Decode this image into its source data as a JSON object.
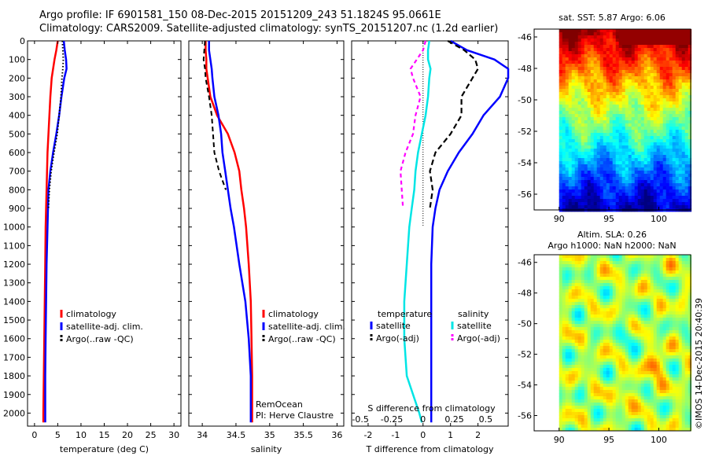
{
  "header": {
    "line1": "Argo profile: IF 6901581_150 08-Dec-2015 20151209_243 51.1824S 95.0661E",
    "line2": "Climatology: CARS2009. Satellite-adjusted climatology: synTS_20151207.nc (1.2d earlier)"
  },
  "side_label": "©IMOS 14-Dec-2015 20:40:39",
  "colors": {
    "climatology": "#ff0000",
    "satellite": "#0000ff",
    "argo": "#000000",
    "s_satellite": "#00e5e5",
    "s_argo": "#ff00ff"
  },
  "chart_data": [
    {
      "type": "line",
      "id": "temperature",
      "xlabel": "temperature (deg C)",
      "xlim": [
        -1.5,
        31.5
      ],
      "xticks": [
        0,
        5,
        10,
        15,
        20,
        25,
        30
      ],
      "ylim": [
        2070,
        0
      ],
      "yticks": [
        0,
        100,
        200,
        300,
        400,
        500,
        600,
        700,
        800,
        900,
        1000,
        1100,
        1200,
        1300,
        1400,
        1500,
        1600,
        1700,
        1800,
        1900,
        2000
      ],
      "depth": [
        0,
        50,
        100,
        150,
        200,
        300,
        400,
        500,
        600,
        700,
        800,
        900,
        1000,
        1200,
        1400,
        1600,
        1800,
        2000,
        2050
      ],
      "series": [
        {
          "name": "climatology",
          "color": "#ff0000",
          "width": 2.5,
          "dash": "",
          "values": [
            5.0,
            4.7,
            4.3,
            4.0,
            3.7,
            3.4,
            3.2,
            3.0,
            2.8,
            2.7,
            2.6,
            2.5,
            2.4,
            2.3,
            2.2,
            2.1,
            2.0,
            1.9,
            1.9
          ]
        },
        {
          "name": "satellite-adj. clim.",
          "color": "#0000ff",
          "width": 2.5,
          "dash": "",
          "values": [
            6.3,
            6.5,
            6.8,
            6.9,
            6.4,
            5.8,
            5.3,
            4.7,
            4.0,
            3.4,
            3.0,
            2.9,
            2.8,
            2.6,
            2.5,
            2.4,
            2.3,
            2.3,
            2.3
          ]
        },
        {
          "name": "Argo(..raw -QC)",
          "color": "#000000",
          "width": 2,
          "dash": "1.5,2.5",
          "values": [
            6.0,
            6.1,
            6.2,
            6.1,
            5.9,
            5.7,
            5.3,
            4.9,
            4.2,
            3.6,
            3.2,
            3.0,
            null,
            null,
            null,
            null,
            null,
            null,
            null
          ]
        }
      ],
      "legend": [
        "climatology",
        "satellite-adj. clim.",
        "Argo(..raw -QC)"
      ]
    },
    {
      "type": "line",
      "id": "salinity",
      "xlabel": "salinity",
      "xlim": [
        33.8,
        36.1
      ],
      "xticks": [
        34,
        34.5,
        35,
        35.5,
        36
      ],
      "ylim": [
        2070,
        0
      ],
      "depth": [
        0,
        50,
        100,
        150,
        200,
        300,
        400,
        500,
        600,
        700,
        800,
        900,
        1000,
        1200,
        1400,
        1600,
        1800,
        2000,
        2050
      ],
      "series": [
        {
          "name": "climatology",
          "color": "#ff0000",
          "width": 2.5,
          "dash": "",
          "values": [
            34.05,
            34.05,
            34.06,
            34.06,
            34.08,
            34.12,
            34.22,
            34.38,
            34.48,
            34.55,
            34.58,
            34.62,
            34.65,
            34.69,
            34.72,
            34.73,
            34.74,
            34.74,
            34.74
          ]
        },
        {
          "name": "satellite-adj. clim.",
          "color": "#0000ff",
          "width": 2.5,
          "dash": "",
          "values": [
            34.1,
            34.1,
            34.12,
            34.14,
            34.15,
            34.18,
            34.24,
            34.28,
            34.3,
            34.34,
            34.38,
            34.42,
            34.47,
            34.55,
            34.64,
            34.69,
            34.72,
            34.72,
            34.72
          ]
        },
        {
          "name": "Argo(..raw -QC)",
          "color": "#000000",
          "width": 2,
          "dash": "6,4",
          "values": [
            34.04,
            34.03,
            34.02,
            34.04,
            34.05,
            34.1,
            34.14,
            34.16,
            34.18,
            34.25,
            34.35,
            null,
            null,
            null,
            null,
            null,
            null,
            null,
            null
          ]
        }
      ],
      "legend": [
        "climatology",
        "satellite-adj. clim.",
        "Argo(..raw -QC)"
      ],
      "annotation": [
        "RemOcean",
        "PI: Herve Claustre"
      ]
    },
    {
      "type": "line",
      "id": "difference",
      "xlabel": "T difference from climatology",
      "xlim": [
        -2.6,
        3.1
      ],
      "xticks": [
        -2,
        -1,
        0,
        1,
        2
      ],
      "top_axis_label": "S difference from climatology",
      "top_ticks": [
        -0.5,
        -0.25,
        0,
        0.25,
        0.5
      ],
      "ylim": [
        2070,
        0
      ],
      "depth": [
        0,
        50,
        100,
        150,
        200,
        300,
        400,
        500,
        600,
        700,
        800,
        900,
        1000,
        1200,
        1400,
        1600,
        1800,
        2000,
        2050
      ],
      "series": [
        {
          "name": "temperature satellite",
          "color": "#0000ff",
          "width": 2.5,
          "dash": "",
          "values": [
            1.0,
            1.6,
            2.6,
            3.1,
            3.1,
            2.8,
            2.2,
            1.8,
            1.3,
            0.9,
            0.6,
            0.45,
            0.35,
            0.3,
            0.3,
            0.3,
            0.3,
            0.3,
            0.3
          ]
        },
        {
          "name": "temperature Argo(-adj)",
          "color": "#000000",
          "width": 2.2,
          "dash": "7,4",
          "values": [
            0.9,
            1.5,
            1.9,
            2.0,
            1.8,
            1.4,
            1.4,
            1.0,
            0.45,
            0.25,
            0.35,
            0.25,
            null,
            null,
            null,
            null,
            null,
            null,
            null
          ]
        },
        {
          "name": "salinity satellite",
          "color": "#00e5e5",
          "width": 2.5,
          "dash": "",
          "values": [
            0.05,
            0.04,
            0.04,
            0.06,
            0.05,
            0.04,
            0.02,
            -0.01,
            -0.04,
            -0.06,
            -0.07,
            -0.09,
            -0.11,
            -0.13,
            -0.15,
            -0.15,
            -0.13,
            -0.03,
            -0.01
          ]
        },
        {
          "name": "salinity Argo(-adj)",
          "color": "#ff00ff",
          "width": 2.2,
          "dash": "5,4",
          "values": [
            0.02,
            0.0,
            -0.05,
            -0.1,
            -0.08,
            -0.02,
            -0.06,
            -0.08,
            -0.14,
            -0.18,
            -0.17,
            -0.16,
            null,
            null,
            null,
            null,
            null,
            null,
            null
          ]
        }
      ],
      "legend_titles": [
        "temperature",
        "salinity"
      ],
      "legend": [
        [
          "satellite",
          "Argo(-adj)"
        ],
        [
          "satellite",
          "Argo(-adj)"
        ]
      ]
    },
    {
      "type": "heatmap",
      "id": "sst_map",
      "title": "sat. SST: 5.87 Argo: 6.06",
      "xlim": [
        87.5,
        103.2
      ],
      "ylim": [
        -57.0,
        -45.5
      ],
      "xticks": [
        90,
        95,
        100
      ],
      "yticks": [
        -46,
        -48,
        -50,
        -52,
        -54,
        -56
      ],
      "data_xlim": [
        90,
        103.2
      ],
      "colormap": "jet"
    },
    {
      "type": "heatmap",
      "id": "sla_map",
      "title_lines": [
        "Altim. SLA: 0.26",
        "Argo h1000: NaN h2000: NaN"
      ],
      "xlim": [
        87.5,
        103.2
      ],
      "ylim": [
        -57.0,
        -45.5
      ],
      "xticks": [
        90,
        95,
        100
      ],
      "yticks": [
        -46,
        -48,
        -50,
        -52,
        -54,
        -56
      ],
      "data_xlim": [
        90,
        103.2
      ],
      "colormap": "jet"
    }
  ]
}
